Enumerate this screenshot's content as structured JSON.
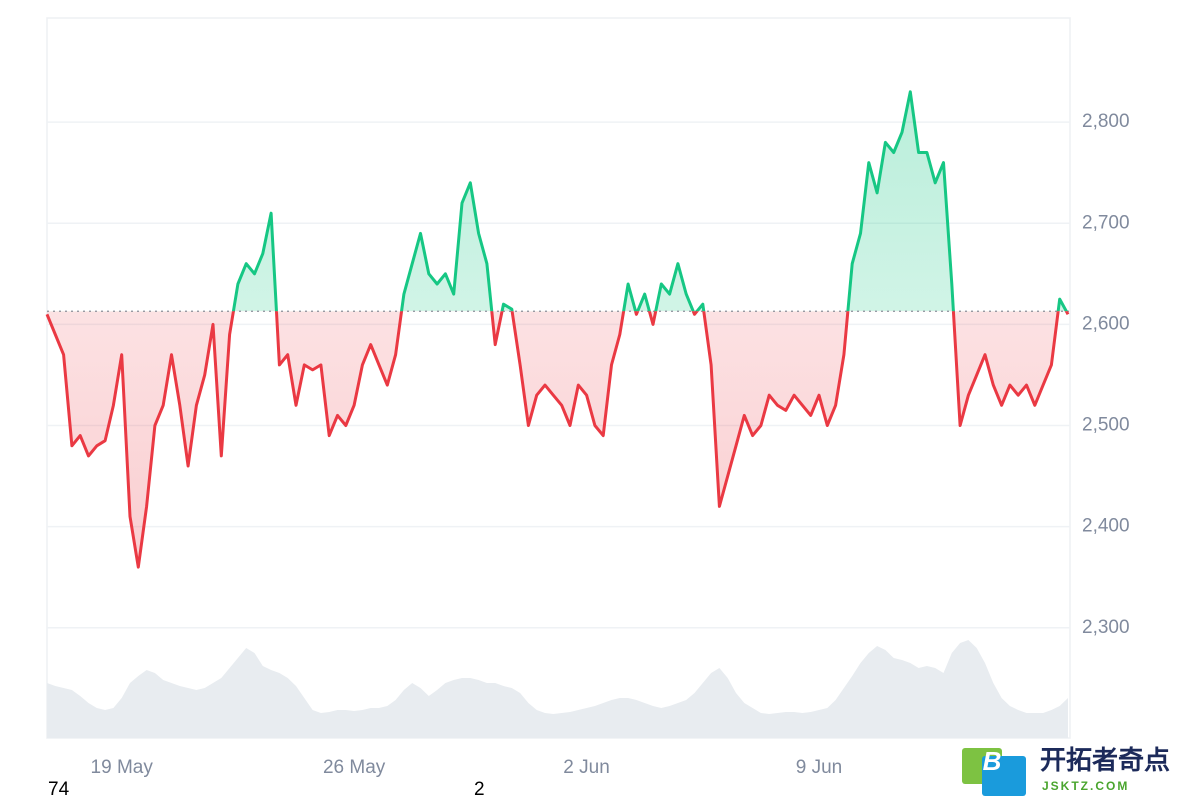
{
  "chart_data": {
    "type": "line",
    "categories": [
      null,
      null,
      null,
      null,
      null,
      null,
      null,
      null,
      null,
      "19 May",
      null,
      null,
      null,
      null,
      null,
      null,
      null,
      null,
      null,
      null,
      null,
      null,
      null,
      null,
      null,
      null,
      null,
      null,
      null,
      null,
      null,
      null,
      null,
      null,
      null,
      null,
      null,
      "26 May",
      null,
      null,
      null,
      null,
      null,
      null,
      null,
      null,
      null,
      null,
      null,
      null,
      null,
      null,
      null,
      null,
      null,
      null,
      null,
      null,
      null,
      null,
      null,
      null,
      null,
      null,
      null,
      "2 Jun",
      null,
      null,
      null,
      null,
      null,
      null,
      null,
      null,
      null,
      null,
      null,
      null,
      null,
      null,
      null,
      null,
      null,
      null,
      null,
      null,
      null,
      null,
      null,
      null,
      null,
      null,
      null,
      "9 Jun",
      null,
      null,
      null,
      null,
      null,
      null,
      null,
      null,
      null,
      null,
      null,
      null,
      null,
      null,
      null,
      null,
      null,
      null,
      null,
      null,
      null,
      null,
      null,
      null,
      null,
      null,
      null,
      null,
      null,
      null
    ],
    "series": [
      {
        "name": "Price",
        "color": "#16c784",
        "color_below": "#ea3943",
        "values": [
          2610,
          2590,
          2570,
          2480,
          2490,
          2470,
          2480,
          2485,
          2520,
          2570,
          2410,
          2360,
          2420,
          2500,
          2520,
          2570,
          2520,
          2460,
          2520,
          2550,
          2600,
          2470,
          2590,
          2640,
          2660,
          2650,
          2670,
          2710,
          2560,
          2570,
          2520,
          2560,
          2555,
          2560,
          2490,
          2510,
          2500,
          2520,
          2560,
          2580,
          2560,
          2540,
          2570,
          2630,
          2660,
          2690,
          2650,
          2640,
          2650,
          2630,
          2720,
          2740,
          2690,
          2660,
          2580,
          2620,
          2615,
          2560,
          2500,
          2530,
          2540,
          2530,
          2520,
          2500,
          2540,
          2530,
          2500,
          2490,
          2560,
          2590,
          2640,
          2610,
          2630,
          2600,
          2640,
          2630,
          2660,
          2630,
          2610,
          2620,
          2560,
          2420,
          2450,
          2480,
          2510,
          2490,
          2500,
          2530,
          2520,
          2515,
          2530,
          2520,
          2510,
          2530,
          2500,
          2520,
          2570,
          2660,
          2690,
          2760,
          2730,
          2780,
          2770,
          2790,
          2830,
          2770,
          2770,
          2740,
          2760,
          2640,
          2500,
          2530,
          2550,
          2570,
          2540,
          2520,
          2540,
          2530,
          2540,
          2520,
          2540,
          2560,
          2625,
          2610
        ]
      },
      {
        "name": "Volume",
        "color": "#e8ecf0",
        "values": [
          55,
          52,
          50,
          48,
          42,
          35,
          30,
          28,
          30,
          40,
          55,
          62,
          68,
          65,
          58,
          55,
          52,
          50,
          48,
          50,
          55,
          60,
          70,
          80,
          90,
          85,
          72,
          68,
          65,
          60,
          52,
          40,
          28,
          25,
          26,
          28,
          28,
          27,
          28,
          30,
          30,
          32,
          38,
          48,
          55,
          50,
          42,
          48,
          55,
          58,
          60,
          60,
          58,
          55,
          55,
          52,
          50,
          45,
          35,
          28,
          25,
          24,
          25,
          26,
          28,
          30,
          32,
          35,
          38,
          40,
          40,
          38,
          35,
          32,
          30,
          32,
          35,
          38,
          45,
          55,
          65,
          70,
          60,
          45,
          35,
          30,
          25,
          24,
          25,
          26,
          26,
          25,
          26,
          28,
          30,
          38,
          50,
          62,
          75,
          85,
          92,
          88,
          80,
          78,
          75,
          70,
          72,
          70,
          65,
          85,
          95,
          98,
          90,
          75,
          55,
          40,
          32,
          28,
          25,
          25,
          25,
          28,
          32,
          40
        ]
      }
    ],
    "baseline": 2613,
    "ylim": [
      2191,
      2903
    ],
    "yticks": [
      {
        "value": 2300,
        "label": "2,300"
      },
      {
        "value": 2400,
        "label": "2,400"
      },
      {
        "value": 2500,
        "label": "2,500"
      },
      {
        "value": 2600,
        "label": "2,600"
      },
      {
        "value": 2700,
        "label": "2,700"
      },
      {
        "value": 2800,
        "label": "2,800"
      }
    ],
    "grid": true,
    "footer_texts": [
      "74",
      "2"
    ],
    "watermark": {
      "logo_letter": "B",
      "name": "开拓者奇点",
      "site": "JSKTZ.COM"
    }
  }
}
